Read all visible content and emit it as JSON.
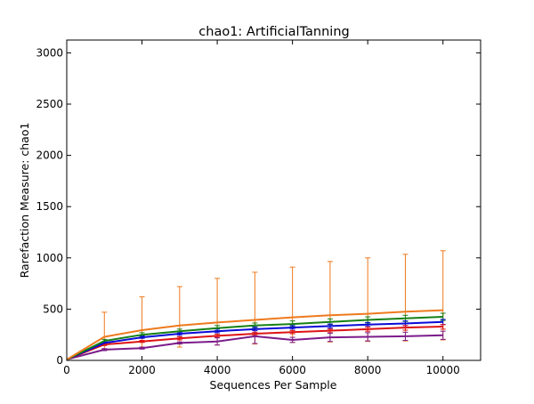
{
  "chart_data": {
    "type": "line",
    "title": "chao1: ArtificialTanning",
    "xlabel": "Sequences Per Sample",
    "ylabel": "Rarefaction Measure: chao1",
    "xlim": [
      0,
      11000
    ],
    "ylim": [
      0,
      3125
    ],
    "x_ticks": [
      0,
      2000,
      4000,
      6000,
      8000,
      10000
    ],
    "y_ticks": [
      0,
      500,
      1000,
      1500,
      2000,
      2500,
      3000
    ],
    "grid": false,
    "legend": "none",
    "x": [
      10,
      1000,
      2000,
      3000,
      4000,
      5000,
      6000,
      7000,
      8000,
      9000,
      10000
    ],
    "series": [
      {
        "color": "#ee7a1e",
        "values": [
          10,
          230,
          295,
          340,
          370,
          395,
          420,
          440,
          455,
          475,
          490
        ],
        "err_low": [
          0,
          110,
          115,
          130,
          150,
          160,
          175,
          180,
          185,
          190,
          200
        ],
        "err_high": [
          0,
          470,
          620,
          720,
          800,
          860,
          910,
          965,
          1000,
          1035,
          1070
        ]
      },
      {
        "color": "#158015",
        "values": [
          10,
          190,
          250,
          285,
          315,
          340,
          355,
          375,
          395,
          410,
          425
        ],
        "err_low": [
          0,
          175,
          235,
          265,
          290,
          315,
          330,
          350,
          365,
          380,
          390
        ],
        "err_high": [
          0,
          205,
          270,
          305,
          340,
          365,
          385,
          405,
          425,
          440,
          460
        ]
      },
      {
        "color": "#0a0ad8",
        "values": [
          10,
          170,
          225,
          260,
          285,
          305,
          320,
          335,
          350,
          360,
          375
        ],
        "err_low": [
          0,
          160,
          215,
          245,
          270,
          290,
          305,
          315,
          330,
          340,
          350
        ],
        "err_high": [
          0,
          180,
          240,
          275,
          305,
          325,
          340,
          355,
          370,
          385,
          400
        ]
      },
      {
        "color": "#dd1414",
        "values": [
          10,
          155,
          185,
          215,
          240,
          260,
          275,
          290,
          305,
          320,
          330
        ],
        "err_low": [
          0,
          145,
          175,
          200,
          225,
          245,
          260,
          270,
          285,
          295,
          305
        ],
        "err_high": [
          0,
          165,
          195,
          230,
          255,
          275,
          290,
          305,
          325,
          340,
          350
        ]
      },
      {
        "color": "#7b1c8a",
        "values": [
          10,
          105,
          120,
          170,
          185,
          235,
          200,
          225,
          230,
          235,
          245
        ],
        "err_low": [
          0,
          95,
          110,
          160,
          150,
          165,
          175,
          185,
          190,
          195,
          205
        ],
        "err_high": [
          0,
          115,
          130,
          180,
          220,
          305,
          225,
          265,
          270,
          275,
          285
        ]
      }
    ]
  }
}
